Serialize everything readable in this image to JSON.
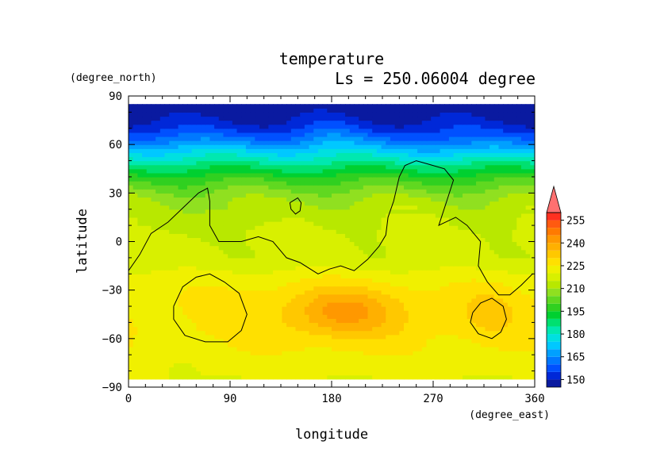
{
  "chart_data": {
    "type": "heatmap",
    "title": "temperature",
    "subtitle": "Ls = 250.06004 degree",
    "xlabel": "longitude",
    "ylabel": "latitude",
    "x_unit": "(degree_east)",
    "y_unit": "(degree_north)",
    "xlim": [
      0,
      360
    ],
    "ylim": [
      -90,
      90
    ],
    "x_ticks": [
      0,
      90,
      180,
      270,
      360
    ],
    "y_ticks": [
      -90,
      -60,
      -30,
      0,
      30,
      60,
      90
    ],
    "x_tick_labels": [
      "0",
      "90",
      "180",
      "270",
      "360"
    ],
    "y_tick_labels": [
      "−90",
      "−60",
      "−30",
      "0",
      "30",
      "60",
      "90"
    ],
    "data_lat_range": [
      -85,
      85
    ],
    "colorbar": {
      "levels": [
        145,
        150,
        155,
        160,
        165,
        170,
        175,
        180,
        185,
        190,
        195,
        200,
        205,
        210,
        215,
        220,
        225,
        230,
        235,
        240,
        245,
        250,
        255,
        260
      ],
      "colors": [
        "#0a1aa0",
        "#0028d8",
        "#0050ff",
        "#0078ff",
        "#00a0ff",
        "#00c8ff",
        "#00e0e0",
        "#00e8b0",
        "#00e070",
        "#00d030",
        "#30d020",
        "#60d820",
        "#90e020",
        "#b8e800",
        "#d8f000",
        "#f0f000",
        "#ffe000",
        "#ffc800",
        "#ffb000",
        "#ff9800",
        "#ff7a00",
        "#ff5a10",
        "#ff3020",
        "#ff7070"
      ],
      "tick_labels": [
        "150",
        "165",
        "180",
        "195",
        "210",
        "225",
        "240",
        "255"
      ],
      "tick_values": [
        150,
        165,
        180,
        195,
        210,
        225,
        240,
        255
      ],
      "extend": "max"
    },
    "field_profile": {
      "lat": [
        -85,
        -80,
        -75,
        -70,
        -65,
        -60,
        -55,
        -50,
        -45,
        -40,
        -35,
        -30,
        -25,
        -20,
        -15,
        -10,
        -5,
        0,
        5,
        10,
        15,
        20,
        25,
        30,
        35,
        40,
        45,
        50,
        55,
        60,
        65,
        70,
        75,
        80,
        85
      ],
      "temp": [
        220,
        222,
        222,
        223,
        224,
        224,
        225,
        225,
        225,
        225,
        225,
        224,
        223,
        221,
        218,
        216,
        216,
        216,
        216,
        215,
        215,
        213,
        211,
        207,
        202,
        197,
        190,
        183,
        176,
        168,
        160,
        154,
        150,
        147,
        145
      ]
    },
    "anomalies": [
      {
        "lon": 190,
        "lat": -43,
        "rx": 42,
        "ry": 14,
        "dT": 11
      },
      {
        "lon": 190,
        "lat": -45,
        "rx": 85,
        "ry": 20,
        "dT": 6
      },
      {
        "lon": 320,
        "lat": -44,
        "rx": 28,
        "ry": 16,
        "dT": 6
      },
      {
        "lon": 45,
        "lat": -80,
        "rx": 12,
        "ry": 4,
        "dT": -5
      },
      {
        "lon": 45,
        "lat": 15,
        "rx": 40,
        "ry": 12,
        "dT": -3
      },
      {
        "lon": 120,
        "lat": 20,
        "rx": 30,
        "ry": 8,
        "dT": -3
      },
      {
        "lon": 180,
        "lat": 68,
        "rx": 25,
        "ry": 10,
        "dT": 4
      },
      {
        "lon": 300,
        "lat": 60,
        "rx": 40,
        "ry": 8,
        "dT": -4
      }
    ],
    "contour_lines": [
      {
        "name": "outline-main",
        "points": [
          [
            0,
            -18
          ],
          [
            10,
            -8
          ],
          [
            20,
            5
          ],
          [
            35,
            12
          ],
          [
            50,
            22
          ],
          [
            62,
            30
          ],
          [
            70,
            33
          ],
          [
            72,
            25
          ],
          [
            72,
            10
          ],
          [
            80,
            0
          ],
          [
            100,
            0
          ],
          [
            115,
            3
          ],
          [
            128,
            0
          ],
          [
            140,
            -10
          ],
          [
            152,
            -13
          ],
          [
            168,
            -20
          ],
          [
            178,
            -17
          ],
          [
            188,
            -15
          ],
          [
            200,
            -18
          ],
          [
            212,
            -11
          ],
          [
            222,
            -3
          ],
          [
            228,
            4
          ],
          [
            230,
            15
          ],
          [
            235,
            25
          ],
          [
            240,
            40
          ],
          [
            245,
            47
          ],
          [
            255,
            50
          ],
          [
            265,
            48
          ],
          [
            280,
            45
          ],
          [
            288,
            38
          ],
          [
            282,
            25
          ],
          [
            275,
            10
          ],
          [
            290,
            15
          ],
          [
            300,
            10
          ],
          [
            312,
            0
          ],
          [
            310,
            -15
          ],
          [
            318,
            -25
          ],
          [
            328,
            -33
          ],
          [
            338,
            -33
          ],
          [
            348,
            -27
          ],
          [
            358,
            -20
          ]
        ]
      },
      {
        "name": "outline-small-north",
        "points": [
          [
            143,
            24
          ],
          [
            150,
            27
          ],
          [
            153,
            24
          ],
          [
            152,
            19
          ],
          [
            148,
            17
          ],
          [
            144,
            20
          ],
          [
            143,
            24
          ]
        ]
      },
      {
        "name": "outline-ring-west",
        "points": [
          [
            40,
            -40
          ],
          [
            48,
            -28
          ],
          [
            60,
            -22
          ],
          [
            72,
            -20
          ],
          [
            85,
            -25
          ],
          [
            98,
            -32
          ],
          [
            105,
            -45
          ],
          [
            100,
            -55
          ],
          [
            88,
            -62
          ],
          [
            68,
            -62
          ],
          [
            50,
            -58
          ],
          [
            40,
            -48
          ],
          [
            40,
            -40
          ]
        ]
      },
      {
        "name": "outline-ring-east",
        "points": [
          [
            305,
            -44
          ],
          [
            312,
            -38
          ],
          [
            322,
            -35
          ],
          [
            332,
            -40
          ],
          [
            335,
            -48
          ],
          [
            330,
            -56
          ],
          [
            322,
            -60
          ],
          [
            310,
            -57
          ],
          [
            303,
            -50
          ],
          [
            305,
            -44
          ]
        ]
      }
    ]
  }
}
